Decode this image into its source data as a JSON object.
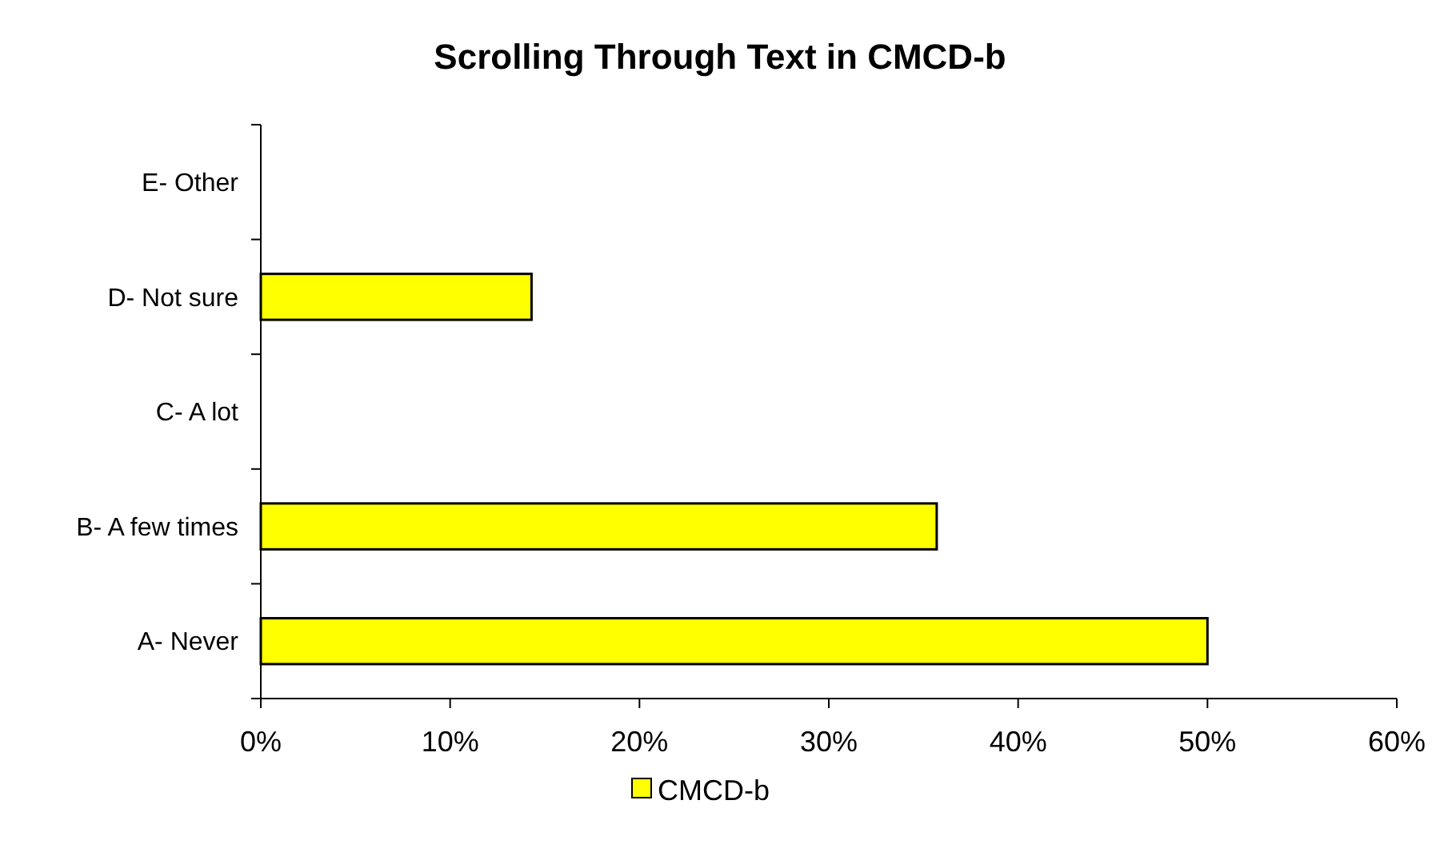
{
  "chart_data": {
    "type": "bar",
    "orientation": "horizontal",
    "title": "Scrolling Through Text in CMCD-b",
    "categories": [
      "E- Other",
      "D- Not sure",
      "C- A lot",
      "B- A few times",
      "A- Never"
    ],
    "series": [
      {
        "name": "CMCD-b",
        "color": "#ffff00",
        "values": [
          0,
          14.3,
          0,
          35.7,
          50
        ]
      }
    ],
    "xlim": [
      0,
      60
    ],
    "xticks": [
      {
        "value": 0,
        "label": "0%"
      },
      {
        "value": 10,
        "label": "10%"
      },
      {
        "value": 20,
        "label": "20%"
      },
      {
        "value": 30,
        "label": "30%"
      },
      {
        "value": 40,
        "label": "40%"
      },
      {
        "value": 50,
        "label": "50%"
      },
      {
        "value": 60,
        "label": "60%"
      }
    ],
    "grid": false,
    "legend": "bottom"
  }
}
